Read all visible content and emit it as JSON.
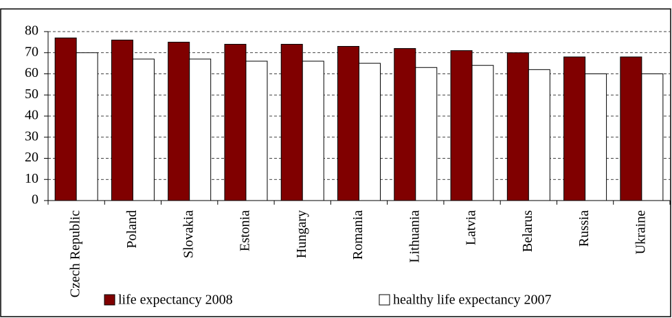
{
  "chart_data": {
    "type": "bar",
    "categories": [
      "Czech Republic",
      "Poland",
      "Slovakia",
      "Estonia",
      "Hungary",
      "Romania",
      "Lithuania",
      "Latvia",
      "Belarus",
      "Russia",
      "Ukraine"
    ],
    "series": [
      {
        "name": "life expectancy 2008",
        "color": "#800000",
        "values": [
          77,
          76,
          75,
          74,
          74,
          73,
          72,
          71,
          70,
          68,
          68
        ]
      },
      {
        "name": "healthy life expectancy 2007",
        "color": "#ffffff",
        "values": [
          70,
          67,
          67,
          66,
          66,
          65,
          63,
          64,
          62,
          60,
          60
        ]
      }
    ],
    "ylim": [
      0,
      80
    ],
    "yticks": [
      0,
      10,
      20,
      30,
      40,
      50,
      60,
      70,
      80
    ],
    "grid": true,
    "legend": "bottom"
  }
}
